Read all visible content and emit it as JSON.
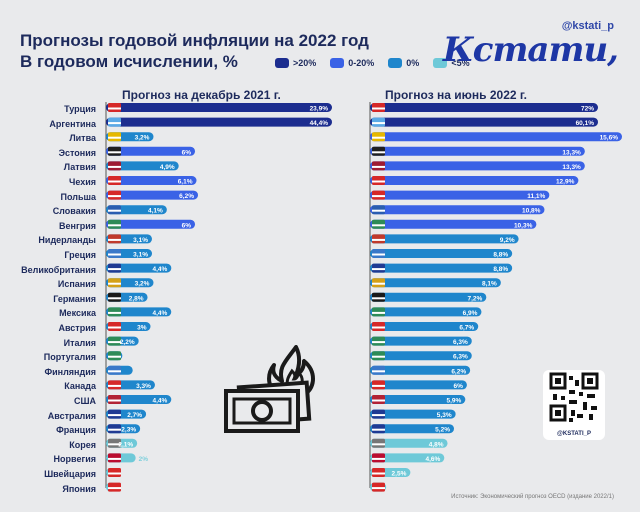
{
  "header": {
    "title_line1": "Прогнозы годовой инфляции на 2022 год",
    "title_line2": "В годовом исчислении, %",
    "handle": "@kstati_p",
    "logo": "Кстати,"
  },
  "legend": [
    {
      "label": ">20%",
      "color": "#1c2d8f"
    },
    {
      "label": "0-20%",
      "color": "#3a62e6"
    },
    {
      "label": "0%",
      "color": "#1f86cc"
    },
    {
      "label": "<5%",
      "color": "#6ec9d8"
    }
  ],
  "panels": {
    "left_title": "Прогноз на декабрь 2021 г.",
    "right_title": "Прогноз на июнь 2022 г."
  },
  "qr_label": "@KSTATI_P",
  "source": "Источник: Экономический прогноз OECD (издание 2022/1)",
  "chart_data": [
    {
      "type": "bar",
      "title": "Прогноз на декабрь 2021 г.",
      "categories": [
        "Турция",
        "Аргентина",
        "Литва",
        "Эстония",
        "Латвия",
        "Чехия",
        "Польша",
        "Словакия",
        "Венгрия",
        "Нидерланды",
        "Греция",
        "Великобритания",
        "Испания",
        "Германия",
        "Мексика",
        "Австрия",
        "Италия",
        "Португалия",
        "Финляндия",
        "Канада",
        "США",
        "Австралия",
        "Франция",
        "Корея",
        "Норвегия",
        "Швейцария",
        "Япония"
      ],
      "values": [
        23.9,
        44.4,
        3.2,
        6,
        4.9,
        6.1,
        6.2,
        4.1,
        6,
        3.1,
        3.1,
        4.4,
        3.2,
        2.8,
        4.4,
        3,
        2.2,
        1.1,
        1.8,
        3.3,
        4.4,
        2.7,
        2.3,
        2.1,
        2,
        0.6,
        0.7
      ],
      "labels": [
        "23,9%",
        "44,4%",
        "3,2%",
        "6%",
        "4,9%",
        "6,1%",
        "6,2%",
        "4,1%",
        "6%",
        "3,1%",
        "3,1%",
        "4,4%",
        "3,2%",
        "2,8%",
        "4,4%",
        "3%",
        "2,2%",
        "",
        "",
        "3,3%",
        "4,4%",
        "2,7%",
        "2,3%",
        "2,1%",
        "2%",
        "",
        ""
      ],
      "colors": [
        "#1c2d8f",
        "#1c2d8f",
        "#1f86cc",
        "#3a62e6",
        "#1f86cc",
        "#3a62e6",
        "#3a62e6",
        "#1f86cc",
        "#3a62e6",
        "#1f86cc",
        "#1f86cc",
        "#1f86cc",
        "#1f86cc",
        "#1f86cc",
        "#1f86cc",
        "#1f86cc",
        "#1f86cc",
        "#1f86cc",
        "#1f86cc",
        "#1f86cc",
        "#1f86cc",
        "#1f86cc",
        "#1f86cc",
        "#6ec9d8",
        "#6ec9d8",
        "#6ec9d8",
        "#6ec9d8"
      ]
    },
    {
      "type": "bar",
      "title": "Прогноз на июнь 2022 г.",
      "categories": [
        "Турция",
        "Аргентина",
        "Литва",
        "Эстония",
        "Латвия",
        "Чехия",
        "Польша",
        "Словакия",
        "Венгрия",
        "Нидерланды",
        "Греция",
        "Великобритания",
        "Испания",
        "Германия",
        "Мексика",
        "Австрия",
        "Италия",
        "Португалия",
        "Финляндия",
        "Канада",
        "США",
        "Австралия",
        "Франция",
        "Корея",
        "Норвегия",
        "Швейцария",
        "Япония"
      ],
      "values": [
        72,
        60.1,
        15.6,
        13.3,
        13.3,
        12.9,
        11.1,
        10.8,
        10.3,
        9.2,
        8.8,
        8.8,
        8.1,
        7.2,
        6.9,
        6.7,
        6.3,
        6.3,
        6.2,
        6,
        5.9,
        5.3,
        5.2,
        4.8,
        4.6,
        2.5,
        1.0
      ],
      "labels": [
        "72%",
        "60,1%",
        "15,6%",
        "13,3%",
        "13,3%",
        "12,9%",
        "11,1%",
        "10,8%",
        "10,3%",
        "9,2%",
        "8,8%",
        "8,8%",
        "8,1%",
        "7,2%",
        "6,9%",
        "6,7%",
        "6,3%",
        "6,3%",
        "6,2%",
        "6%",
        "5,9%",
        "5,3%",
        "5,2%",
        "4,8%",
        "4,6%",
        "2,5%",
        ""
      ],
      "colors": [
        "#1c2d8f",
        "#1c2d8f",
        "#3a62e6",
        "#3a62e6",
        "#3a62e6",
        "#3a62e6",
        "#3a62e6",
        "#3a62e6",
        "#3a62e6",
        "#1f86cc",
        "#1f86cc",
        "#1f86cc",
        "#1f86cc",
        "#1f86cc",
        "#1f86cc",
        "#1f86cc",
        "#1f86cc",
        "#1f86cc",
        "#1f86cc",
        "#1f86cc",
        "#1f86cc",
        "#1f86cc",
        "#1f86cc",
        "#6ec9d8",
        "#6ec9d8",
        "#6ec9d8",
        "#6ec9d8"
      ]
    }
  ]
}
